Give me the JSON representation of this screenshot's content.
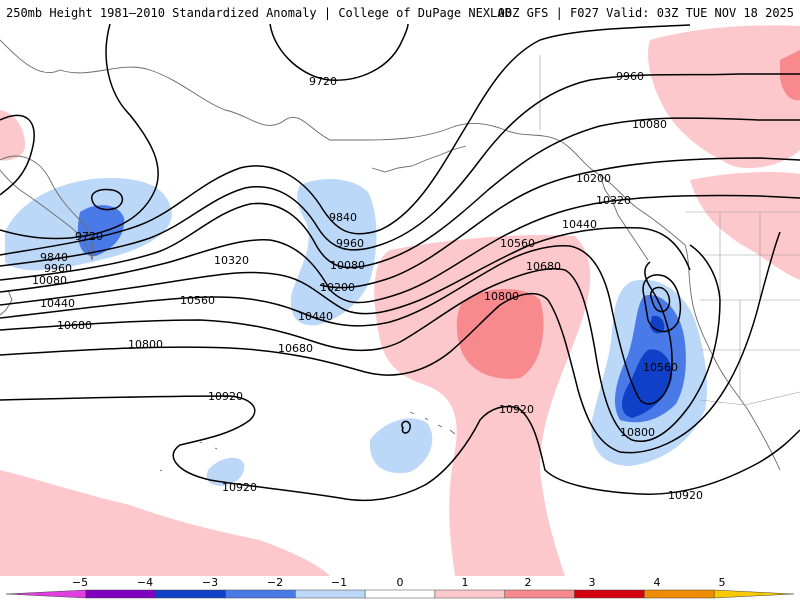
{
  "header": {
    "title_left": "250mb Height 1981–2010 Standardized Anomaly | College of DuPage NEXLAB",
    "title_right": "00Z GFS | F027 Valid: 03Z TUE NOV 18 2025"
  },
  "contour_labels": [
    "9720",
    "9720",
    "9840",
    "9960",
    "10080",
    "10440",
    "10680",
    "10320",
    "10560",
    "10800",
    "10920",
    "10920",
    "9840",
    "9960",
    "10080",
    "10200",
    "10440",
    "10680",
    "10800",
    "10560",
    "10680",
    "10920",
    "9960",
    "10080",
    "10200",
    "10320",
    "10440",
    "10560",
    "10800",
    "10920"
  ],
  "colorbar": {
    "ticks": [
      "−5",
      "−4",
      "−3",
      "−2",
      "−1",
      "0",
      "1",
      "2",
      "3",
      "4",
      "5"
    ],
    "colors": [
      "#e040e0",
      "#8000c0",
      "#1040c8",
      "#4a7ae8",
      "#bcd8f8",
      "#ffffff",
      "#fcc8cc",
      "#f88a8e",
      "#d40010",
      "#f08c00",
      "#f8c800"
    ]
  }
}
